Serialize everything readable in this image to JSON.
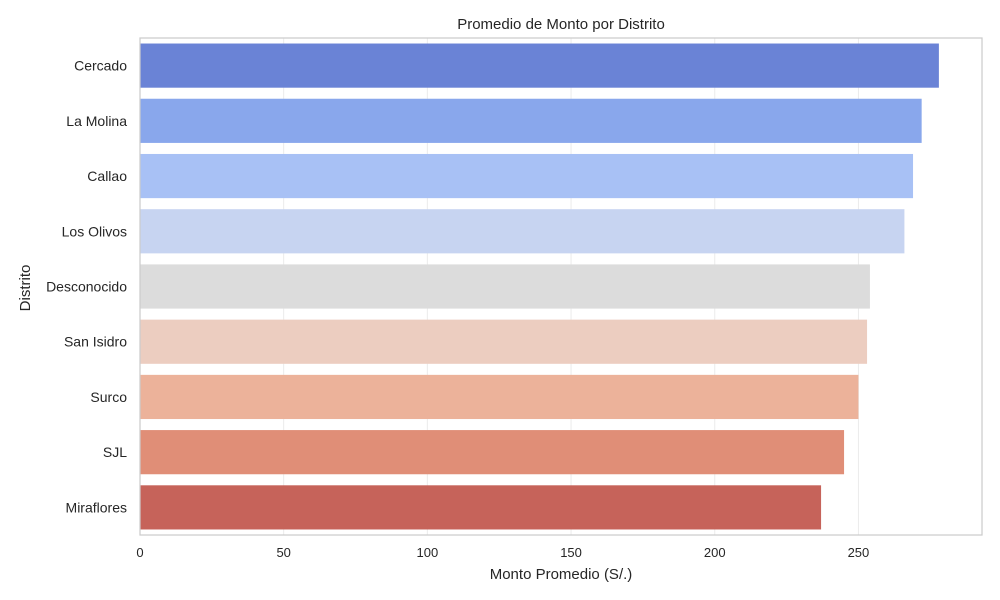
{
  "chart_data": {
    "type": "bar",
    "orientation": "horizontal",
    "title": "Promedio de Monto por Distrito",
    "xlabel": "Monto Promedio (S/.)",
    "ylabel": "Distrito",
    "xlim": [
      0,
      293
    ],
    "xticks": [
      0,
      50,
      100,
      150,
      200,
      250
    ],
    "xtick_labels": [
      "0",
      "50",
      "100",
      "150",
      "200",
      "250"
    ],
    "grid": true,
    "categories": [
      "Cercado",
      "La Molina",
      "Callao",
      "Los Olivos",
      "Desconocido",
      "San Isidro",
      "Surco",
      "SJL",
      "Miraflores"
    ],
    "values": [
      278,
      272,
      269,
      266,
      254,
      253,
      250,
      245,
      237
    ],
    "colors": [
      "#6a83d6",
      "#89a7ec",
      "#a8c1f5",
      "#c7d4f1",
      "#dcdcdc",
      "#eccdc0",
      "#ecb29a",
      "#e08e77",
      "#c6635a"
    ]
  }
}
